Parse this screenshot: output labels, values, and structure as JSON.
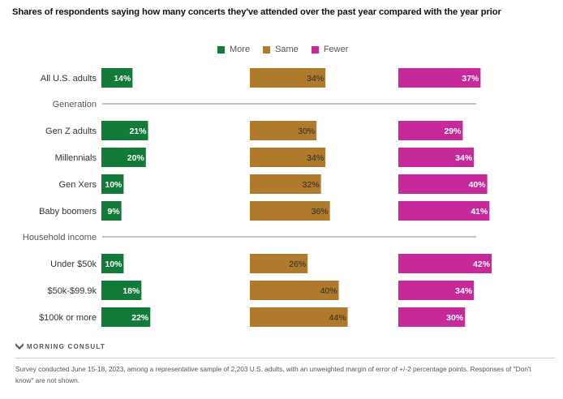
{
  "title": "Shares of respondents saying how many concerts they've attended over the past year compared with the year prior",
  "legend": [
    {
      "label": "More",
      "color": "#137b3a"
    },
    {
      "label": "Same",
      "color": "#b07a2c"
    },
    {
      "label": "Fewer",
      "color": "#c7299a"
    }
  ],
  "chart_data": {
    "type": "bar",
    "title": "Shares of respondents saying how many concerts they've attended over the past year compared with the year prior",
    "xlabel": "",
    "ylabel": "",
    "unit": "%",
    "legend_position": "top-center",
    "grid": false,
    "series_names": [
      "More",
      "Same",
      "Fewer"
    ],
    "rows": [
      {
        "type": "row",
        "label": "All U.S. adults",
        "values": [
          14,
          34,
          37
        ]
      },
      {
        "type": "section",
        "label": "Generation"
      },
      {
        "type": "row",
        "label": "Gen Z adults",
        "values": [
          21,
          30,
          29
        ]
      },
      {
        "type": "row",
        "label": "Millennials",
        "values": [
          20,
          34,
          34
        ]
      },
      {
        "type": "row",
        "label": "Gen Xers",
        "values": [
          10,
          32,
          40
        ]
      },
      {
        "type": "row",
        "label": "Baby boomers",
        "values": [
          9,
          36,
          41
        ]
      },
      {
        "type": "section",
        "label": "Household income"
      },
      {
        "type": "row",
        "label": "Under $50k",
        "values": [
          10,
          26,
          42
        ]
      },
      {
        "type": "row",
        "label": "$50k-$99.9k",
        "values": [
          18,
          40,
          34
        ]
      },
      {
        "type": "row",
        "label": "$100k or more",
        "values": [
          22,
          44,
          30
        ]
      }
    ],
    "series": [
      {
        "name": "More",
        "color": "#137b3a",
        "label_color": "#ffffff",
        "values": [
          14,
          21,
          20,
          10,
          9,
          10,
          18,
          22
        ]
      },
      {
        "name": "Same",
        "color": "#b07a2c",
        "label_color": "#2a2a2a",
        "values": [
          34,
          30,
          34,
          32,
          36,
          26,
          40,
          44
        ]
      },
      {
        "name": "Fewer",
        "color": "#c7299a",
        "label_color": "#ffffff",
        "values": [
          37,
          29,
          34,
          40,
          41,
          42,
          34,
          30
        ]
      }
    ],
    "categories": [
      "All U.S. adults",
      "Gen Z adults",
      "Millennials",
      "Gen Xers",
      "Baby boomers",
      "Under $50k",
      "$50k-$99.9k",
      "$100k or more"
    ]
  },
  "footer": {
    "brand": "MORNING CONSULT",
    "note": "Survey conducted June 15-18, 2023, among a representative sample of 2,203 U.S. adults, with an unweighted margin of error of +/-2 percentage points. Responses of \"Don't know\" are not shown."
  }
}
